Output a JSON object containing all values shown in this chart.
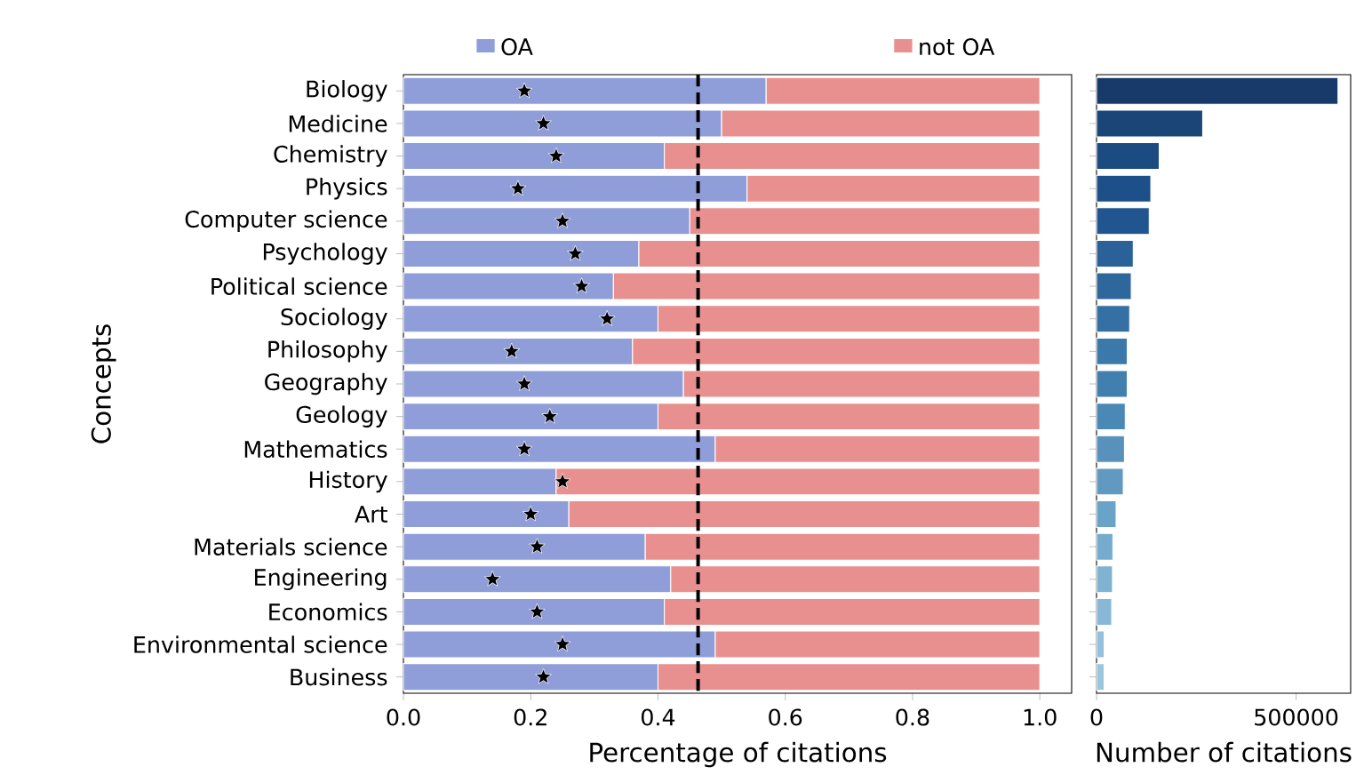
{
  "chart_data": [
    {
      "type": "bar",
      "orientation": "horizontal",
      "stacked": true,
      "xlabel": "Percentage of citations",
      "ylabel": "Concepts",
      "categories": [
        "Biology",
        "Medicine",
        "Chemistry",
        "Physics",
        "Computer science",
        "Psychology",
        "Political science",
        "Sociology",
        "Philosophy",
        "Geography",
        "Geology",
        "Mathematics",
        "History",
        "Art",
        "Materials science",
        "Engineering",
        "Economics",
        "Environmental science",
        "Business"
      ],
      "series": [
        {
          "name": "OA",
          "color": "#8f9dd9",
          "values": [
            0.57,
            0.5,
            0.41,
            0.54,
            0.45,
            0.37,
            0.33,
            0.4,
            0.36,
            0.44,
            0.4,
            0.49,
            0.24,
            0.26,
            0.38,
            0.42,
            0.41,
            0.49,
            0.4
          ]
        },
        {
          "name": "not OA",
          "color": "#e8908f",
          "values": [
            0.43,
            0.5,
            0.59,
            0.46,
            0.55,
            0.63,
            0.67,
            0.6,
            0.64,
            0.56,
            0.6,
            0.51,
            0.76,
            0.74,
            0.62,
            0.58,
            0.59,
            0.51,
            0.6
          ]
        },
        {
          "type": "scatter",
          "marker": "star",
          "color": "#000000",
          "values": [
            0.19,
            0.22,
            0.24,
            0.18,
            0.25,
            0.27,
            0.28,
            0.32,
            0.17,
            0.19,
            0.23,
            0.19,
            0.25,
            0.2,
            0.21,
            0.14,
            0.21,
            0.25,
            0.22
          ]
        }
      ],
      "xlim": [
        0,
        1.05
      ],
      "xticks": [
        {
          "value": 0,
          "label": "0.0"
        },
        0.2,
        0.4,
        0.6,
        0.8,
        {
          "value": 1,
          "label": "1.0"
        }
      ],
      "ref_lines": [
        {
          "axis": "x",
          "value": 0.463,
          "color": "#000000",
          "line_style": "dashed"
        }
      ],
      "legend": "top"
    },
    {
      "type": "bar",
      "orientation": "horizontal",
      "xlabel": "Number of citations",
      "tick_labels": "x",
      "categories": [
        null,
        null,
        null,
        null,
        null,
        null,
        null,
        null,
        null,
        null,
        null,
        null,
        null,
        null,
        null,
        null,
        null,
        null,
        null
      ],
      "values": [
        605000,
        266000,
        157000,
        136000,
        132000,
        92000,
        87000,
        83000,
        77000,
        77000,
        72000,
        70000,
        67000,
        49000,
        41000,
        40000,
        38000,
        19000,
        19000
      ],
      "colors": [
        "#173a6b",
        "#1a4577",
        "#1b4b80",
        "#1d5088",
        "#205590",
        "#2a6198",
        "#2e679c",
        "#3470a3",
        "#3b79aa",
        "#407fae",
        "#4a89b6",
        "#5892bc",
        "#6199c0",
        "#6aa3c8",
        "#75abcd",
        "#80b3d2",
        "#88b8d5",
        "#93c0da",
        "#9cc6de"
      ],
      "xlim": [
        0,
        636700
      ],
      "xticks": [
        0,
        500000
      ]
    }
  ]
}
